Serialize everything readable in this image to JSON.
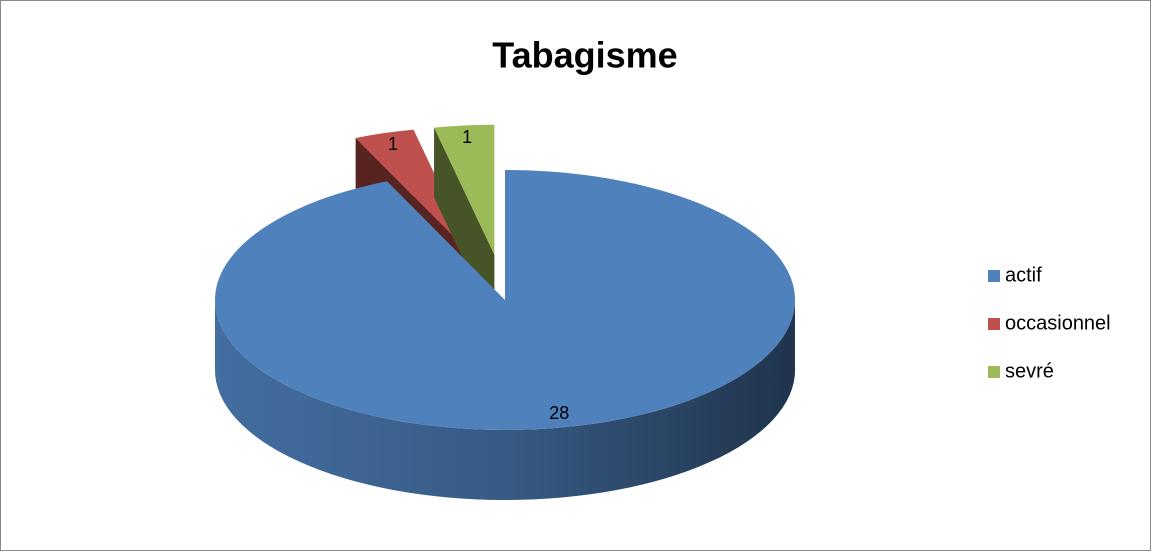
{
  "chart_data": {
    "type": "pie",
    "title": "Tabagisme",
    "categories": [
      "actif",
      "occasionnel",
      "sevré"
    ],
    "values": [
      28,
      1,
      1
    ],
    "colors": [
      "#4f81bd",
      "#c0504d",
      "#9bbb59"
    ],
    "exploded": [
      false,
      true,
      true
    ],
    "legend": "right"
  }
}
